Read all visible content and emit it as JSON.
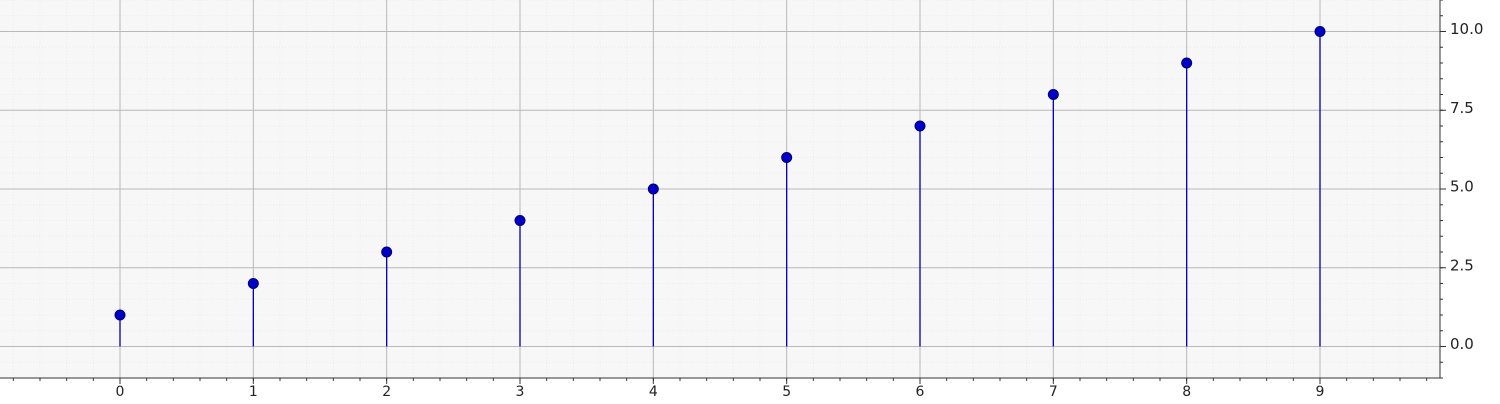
{
  "chart_data": {
    "type": "stem",
    "x": [
      0,
      1,
      2,
      3,
      4,
      5,
      6,
      7,
      8,
      9
    ],
    "values": [
      1,
      2,
      3,
      4,
      5,
      6,
      7,
      8,
      9,
      10
    ],
    "x_ticks": [
      0,
      1,
      2,
      3,
      4,
      5,
      6,
      7,
      8,
      9
    ],
    "y_ticks": [
      0.0,
      2.5,
      5.0,
      7.5,
      10.0
    ],
    "y_tick_labels": [
      "0.0",
      "2.5",
      "5.0",
      "7.5",
      "10.0"
    ],
    "xlim": [
      -0.9,
      9.9
    ],
    "ylim": [
      -1.0,
      11.0
    ],
    "y_axis_side": "right",
    "grid": true,
    "minor_grid": true,
    "title": "",
    "xlabel": "",
    "ylabel": "",
    "colors": {
      "series": "#0000b4",
      "marker_fill": "#0000c8",
      "marker_edge": "#00006a",
      "major_grid": "#b9b9b9",
      "minor_grid": "#ececec",
      "axis": "#333333",
      "background": "#f7f7f7"
    }
  }
}
